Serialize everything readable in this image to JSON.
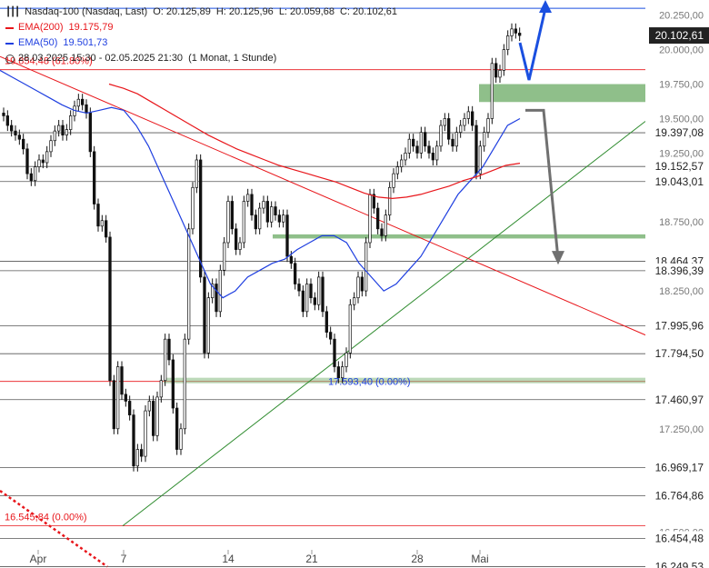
{
  "legend": {
    "title": "Nasdaq-100 (Nasdaq, Last)",
    "open": "O: 20.125,89",
    "high": "H: 20.125,96",
    "low": "L: 20.059,68",
    "close": "C: 20.102,61",
    "ema200_label": "EMA(200)",
    "ema200_value": "19.175,79",
    "ema50_label": "EMA(50)",
    "ema50_value": "19.501,73",
    "range": "28.03.2025 15:30 - 02.05.2025 21:30",
    "period": "(1 Monat, 1 Stunde)"
  },
  "colors": {
    "ema200": "#e8161b",
    "ema50": "#1f3fe0",
    "candle": "#111111",
    "zone": "#8fbf8a",
    "trend_up": "#2e8b2e",
    "arrow_up": "#1a4fe0",
    "arrow_down": "#707070",
    "label_bg": "#222222"
  },
  "chart_data": {
    "type": "candlestick",
    "ylim": [
      16240,
      20360
    ],
    "x_ticks": [
      "Apr",
      "7",
      "14",
      "21",
      "28",
      "Mai"
    ],
    "y_ticks": [
      "20.250,00",
      "20.000,00",
      "19.750,00",
      "19.500,00",
      "19.250,00",
      "18.750,00",
      "18.250,00",
      "17.250,00",
      "16.500,00"
    ],
    "price_levels": [
      {
        "label": "19.397,08",
        "value": 19397.08
      },
      {
        "label": "19.152,57",
        "value": 19152.57
      },
      {
        "label": "19.043,01",
        "value": 19043.01
      },
      {
        "label": "18.464,37",
        "value": 18464.37
      },
      {
        "label": "18.396,39",
        "value": 18396.39
      },
      {
        "label": "17.995,96",
        "value": 17995.96
      },
      {
        "label": "17.794,50",
        "value": 17794.5
      },
      {
        "label": "17.460,97",
        "value": 17460.97
      },
      {
        "label": "16.969,17",
        "value": 16969.17
      },
      {
        "label": "16.764,86",
        "value": 16764.86
      },
      {
        "label": "16.454,48",
        "value": 16454.48
      },
      {
        "label": "16.249,53",
        "value": 16249.53
      }
    ],
    "last_price": {
      "label": "20.102,61",
      "value": 20102.61
    },
    "fib_levels": [
      {
        "label": "19.854,48 (61.80%)",
        "value": 19854.48
      },
      {
        "label": "17.593,40 (0.00%)",
        "value": 17593.4
      },
      {
        "label": "16.545,84 (0.00%)",
        "value": 16545.84
      }
    ],
    "zones": [
      {
        "from": 19620,
        "to": 19750
      },
      {
        "from": 18630,
        "to": 18660
      },
      {
        "from": 17580,
        "to": 17620
      }
    ],
    "candles_close": [
      19520,
      19450,
      19410,
      19380,
      19350,
      19280,
      19100,
      19050,
      19150,
      19200,
      19180,
      19260,
      19340,
      19410,
      19450,
      19380,
      19420,
      19520,
      19590,
      19640,
      19600,
      19540,
      19260,
      18880,
      18720,
      18760,
      18640,
      17600,
      17250,
      17700,
      17500,
      17450,
      17350,
      16980,
      17100,
      17050,
      17380,
      17450,
      17200,
      17480,
      17600,
      17900,
      17750,
      17400,
      17100,
      17250,
      17900,
      18700,
      19000,
      19200,
      18350,
      17800,
      18200,
      18300,
      18100,
      18400,
      18600,
      18900,
      18700,
      18550,
      18600,
      18900,
      18950,
      18800,
      18700,
      18850,
      18900,
      18750,
      18860,
      18800,
      18750,
      18800,
      18500,
      18450,
      18300,
      18250,
      18100,
      18300,
      18200,
      18150,
      18350,
      18100,
      17950,
      17900,
      17700,
      17620,
      17700,
      17800,
      18150,
      18200,
      18350,
      18250,
      18600,
      18950,
      18850,
      18700,
      18650,
      18800,
      19000,
      19100,
      19150,
      19200,
      19250,
      19350,
      19300,
      19250,
      19400,
      19300,
      19250,
      19200,
      19300,
      19450,
      19500,
      19350,
      19300,
      19400,
      19450,
      19500,
      19550,
      19450,
      19100,
      19300,
      19400,
      19500,
      19900,
      19800,
      19850,
      20000,
      20100,
      20150,
      20120,
      20102.61
    ],
    "ema50": [
      19850,
      19800,
      19750,
      19700,
      19650,
      19600,
      19560,
      19540,
      19560,
      19580,
      19560,
      19450,
      19300,
      19100,
      18900,
      18700,
      18500,
      18300,
      18200,
      18250,
      18350,
      18400,
      18450,
      18480,
      18550,
      18600,
      18650,
      18650,
      18600,
      18450,
      18350,
      18250,
      18300,
      18400,
      18500,
      18650,
      18800,
      18950,
      19050,
      19150,
      19300,
      19450,
      19500
    ],
    "ema200": [
      19750,
      19720,
      19680,
      19620,
      19560,
      19500,
      19440,
      19380,
      19330,
      19280,
      19240,
      19200,
      19160,
      19130,
      19100,
      19070,
      19040,
      19000,
      18960,
      18930,
      18920,
      18930,
      18950,
      18980,
      19010,
      19050,
      19080,
      19120,
      19160,
      19175.79
    ]
  }
}
